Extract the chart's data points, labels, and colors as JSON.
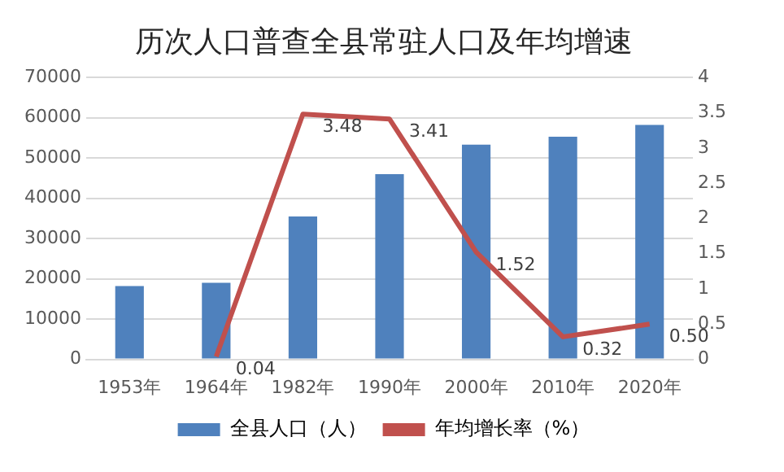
{
  "chart_data": {
    "type": "bar",
    "title": "历次人口普查全县常驻人口及年均增速",
    "categories": [
      "1953年",
      "1964年",
      "1982年",
      "1990年",
      "2000年",
      "2010年",
      "2020年"
    ],
    "series": [
      {
        "name": "全县人口（人）",
        "color": "#4f81bd",
        "values": [
          18200,
          19000,
          35500,
          46000,
          53300,
          55300,
          58200
        ]
      },
      {
        "name": "年均增长率（%）",
        "type": "line",
        "axis": "y2",
        "color": "#c0504d",
        "values": [
          null,
          0.04,
          3.48,
          3.41,
          1.52,
          0.32,
          0.5
        ],
        "value_labels": [
          null,
          "0.04",
          "3.48",
          "3.41",
          "1.52",
          "0.32",
          "0.50"
        ]
      }
    ],
    "ylim": [
      0,
      70000
    ],
    "yticks": [
      0,
      10000,
      20000,
      30000,
      40000,
      50000,
      60000,
      70000
    ],
    "y2lim": [
      0,
      4
    ],
    "y2ticks": [
      0,
      0.5,
      1,
      1.5,
      2,
      2.5,
      3,
      3.5,
      4
    ],
    "grid": "y",
    "legend": "bottom",
    "marker": "none"
  }
}
